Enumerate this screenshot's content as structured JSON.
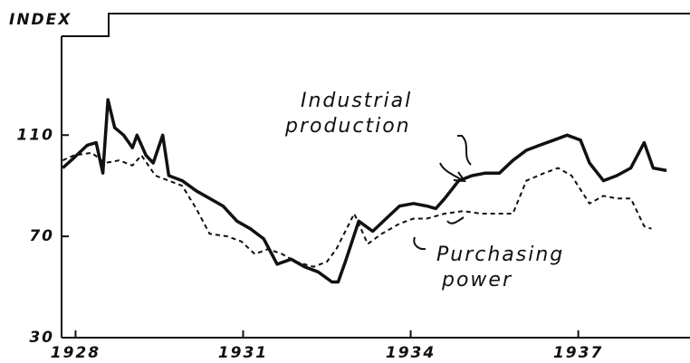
{
  "chart_data": {
    "type": "line",
    "title": "INDEX",
    "xlim": [
      1927.75,
      1939.0
    ],
    "xticks": [
      1928,
      1931,
      1934,
      1937
    ],
    "ylim": [
      30,
      158
    ],
    "yticks": [
      30,
      70,
      110
    ],
    "series": [
      {
        "name": "Industrial production",
        "color": "#111111",
        "style": "solid",
        "x": [
          1927.77,
          1927.97,
          1928.21,
          1928.37,
          1928.49,
          1928.58,
          1928.7,
          1928.86,
          1929.02,
          1929.1,
          1929.26,
          1929.39,
          1929.56,
          1929.67,
          1929.91,
          1930.16,
          1930.4,
          1930.64,
          1930.89,
          1931.13,
          1931.37,
          1931.61,
          1931.86,
          1932.1,
          1932.34,
          1932.59,
          1932.7,
          1932.83,
          1933.07,
          1933.32,
          1933.56,
          1933.8,
          1934.05,
          1934.29,
          1934.45,
          1934.61,
          1934.86,
          1935.1,
          1935.34,
          1935.59,
          1935.83,
          1936.07,
          1936.31,
          1936.56,
          1936.8,
          1937.04,
          1937.2,
          1937.45,
          1937.69,
          1937.94,
          1938.18,
          1938.34,
          1938.58
        ],
        "values": [
          97,
          101,
          106,
          107,
          95,
          124,
          113,
          110,
          105,
          110,
          102,
          99,
          110,
          94,
          92,
          88,
          85,
          82,
          76,
          73,
          69,
          59,
          61,
          58,
          56,
          52,
          52,
          60,
          76,
          72,
          77,
          82,
          83,
          82,
          81,
          85,
          92,
          94,
          95,
          95,
          100,
          104,
          106,
          108,
          110,
          108,
          99,
          92,
          94,
          97,
          107,
          97,
          96
        ]
      },
      {
        "name": "Purchasing power",
        "color": "#111111",
        "style": "dashed",
        "x": [
          1927.77,
          1927.97,
          1928.29,
          1928.53,
          1928.78,
          1929.02,
          1929.18,
          1929.43,
          1929.67,
          1929.91,
          1930.16,
          1930.4,
          1930.72,
          1930.97,
          1931.21,
          1931.45,
          1931.7,
          1931.94,
          1932.26,
          1932.5,
          1932.67,
          1932.99,
          1933.23,
          1933.48,
          1933.8,
          1934.05,
          1934.29,
          1934.61,
          1934.94,
          1935.26,
          1935.59,
          1935.83,
          1936.07,
          1936.39,
          1936.64,
          1936.88,
          1937.2,
          1937.45,
          1937.69,
          1937.94,
          1938.18,
          1938.31
        ],
        "values": [
          100,
          102,
          103,
          99,
          100,
          98,
          102,
          94,
          92,
          90,
          81,
          71,
          70,
          68,
          63,
          65,
          63,
          60,
          58,
          60,
          65,
          79,
          67,
          71,
          75,
          77,
          77,
          79,
          80,
          79,
          79,
          79,
          92,
          95,
          97,
          94,
          83,
          86,
          85,
          85,
          74,
          73
        ]
      }
    ]
  }
}
